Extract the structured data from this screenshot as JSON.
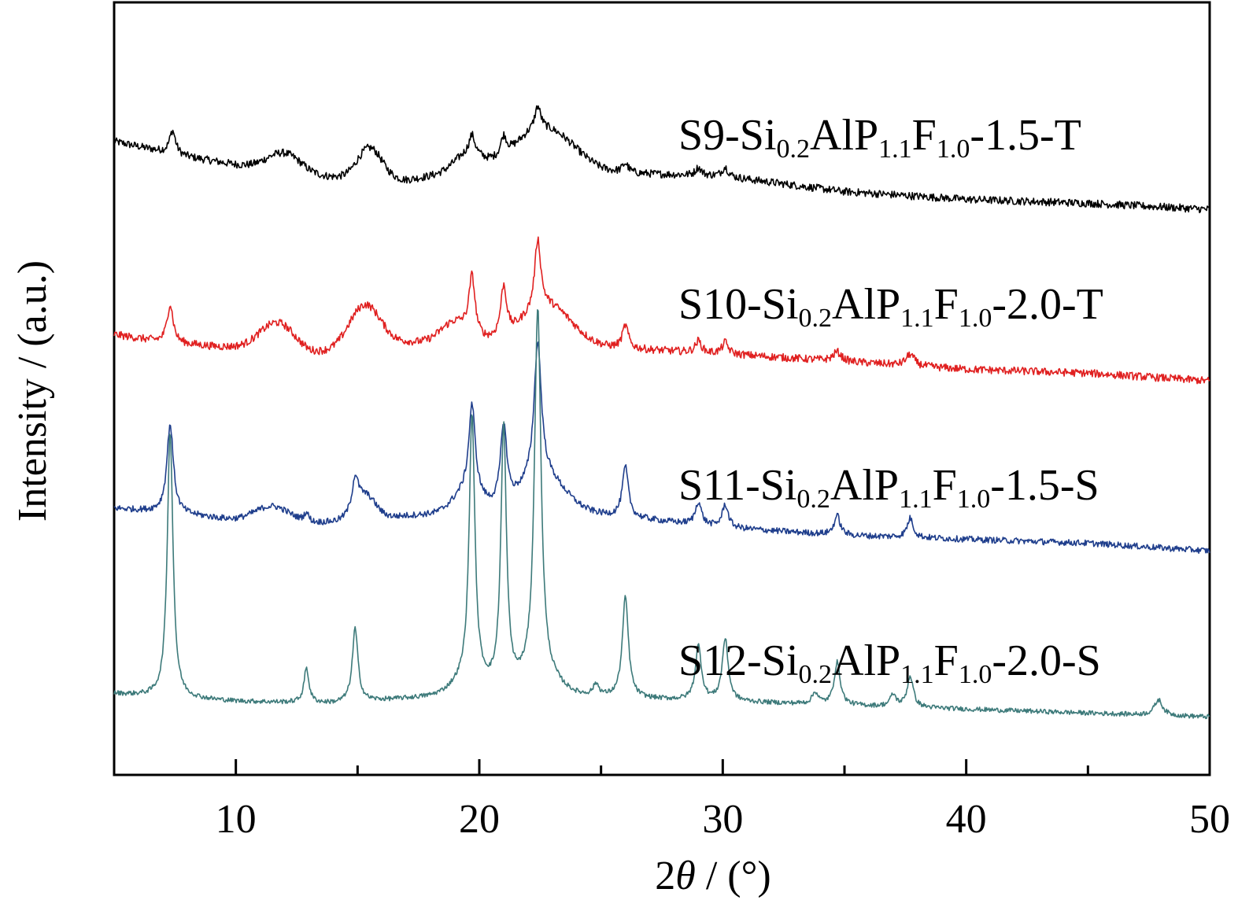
{
  "chart_data": {
    "type": "line",
    "title": "",
    "xlabel_pre": "2",
    "xlabel_theta": "θ",
    "xlabel_post": " / (°)",
    "ylabel": "Intensity / (a.u.)",
    "xlim": [
      5,
      50
    ],
    "xticks": [
      10,
      20,
      30,
      40,
      50
    ],
    "xtick_labels": [
      "10",
      "20",
      "30",
      "40",
      "50"
    ],
    "minor_xticks": [
      5,
      15,
      25,
      35,
      45
    ],
    "yticks": false,
    "grid": false,
    "legend": "inline labels",
    "series": [
      {
        "name": "S9-Si0.2AlP1.1F1.0-1.5-T",
        "label": {
          "p1": "S9-Si",
          "s1": "0.2",
          "p2": "AlP",
          "s2": "1.1",
          "p3": "F",
          "s3": "1.0",
          "p4": "-1.5-T"
        },
        "color": "#000000",
        "baseline": [
          [
            5,
            820
          ],
          [
            8,
            800
          ],
          [
            10,
            790
          ],
          [
            13,
            775
          ],
          [
            17,
            770
          ],
          [
            20,
            785
          ],
          [
            22,
            795
          ],
          [
            25,
            780
          ],
          [
            30,
            775
          ],
          [
            35,
            755
          ],
          [
            40,
            745
          ],
          [
            45,
            740
          ],
          [
            50,
            732
          ]
        ],
        "bumps": [
          [
            12,
            25,
            1.0
          ],
          [
            15.5,
            40,
            0.7
          ],
          [
            19.5,
            20,
            0.8
          ],
          [
            22.8,
            45,
            1.6
          ]
        ],
        "peaks": [
          [
            7.4,
            30,
            0.15
          ],
          [
            19.7,
            25,
            0.15
          ],
          [
            21.0,
            25,
            0.15
          ],
          [
            22.4,
            30,
            0.15
          ],
          [
            26.0,
            12,
            0.15
          ],
          [
            29.0,
            10,
            0.15
          ],
          [
            30.1,
            12,
            0.15
          ]
        ],
        "noise": 5
      },
      {
        "name": "S10-Si0.2AlP1.1F1.0-2.0-T",
        "label": {
          "p1": "S10-Si",
          "s1": "0.2",
          "p2": "AlP",
          "s2": "1.1",
          "p3": "F",
          "s3": "1.0",
          "p4": "-2.0-T"
        },
        "color": "#e02020",
        "baseline": [
          [
            5,
            570
          ],
          [
            7,
            560
          ],
          [
            9,
            555
          ],
          [
            12,
            550
          ],
          [
            13,
            545
          ],
          [
            17,
            560
          ],
          [
            20,
            560
          ],
          [
            24,
            555
          ],
          [
            30,
            545
          ],
          [
            35,
            535
          ],
          [
            40,
            525
          ],
          [
            45,
            520
          ],
          [
            50,
            510
          ]
        ],
        "bumps": [
          [
            11.7,
            35,
            1.0
          ],
          [
            15.3,
            55,
            0.9
          ],
          [
            19.0,
            25,
            0.8
          ],
          [
            22.8,
            50,
            1.4
          ]
        ],
        "peaks": [
          [
            7.3,
            50,
            0.15
          ],
          [
            19.7,
            75,
            0.15
          ],
          [
            21.0,
            65,
            0.15
          ],
          [
            22.4,
            90,
            0.15
          ],
          [
            26.0,
            30,
            0.15
          ],
          [
            29.0,
            15,
            0.15
          ],
          [
            30.1,
            15,
            0.15
          ],
          [
            34.7,
            12,
            0.2
          ],
          [
            37.7,
            15,
            0.2
          ]
        ],
        "noise": 5
      },
      {
        "name": "S11-Si0.2AlP1.1F1.0-1.5-S",
        "label": {
          "p1": "S11-Si",
          "s1": "0.2",
          "p2": "AlP",
          "s2": "1.1",
          "p3": "F",
          "s3": "1.0",
          "p4": "-1.5-S"
        },
        "color": "#1f3e8c",
        "baseline": [
          [
            5,
            345
          ],
          [
            7,
            340
          ],
          [
            10,
            330
          ],
          [
            13,
            325
          ],
          [
            17,
            335
          ],
          [
            20,
            340
          ],
          [
            24,
            340
          ],
          [
            30,
            320
          ],
          [
            35,
            310
          ],
          [
            40,
            305
          ],
          [
            45,
            300
          ],
          [
            50,
            290
          ]
        ],
        "bumps": [
          [
            11.5,
            20,
            1.0
          ],
          [
            15.3,
            30,
            0.6
          ],
          [
            19.5,
            25,
            0.8
          ],
          [
            22.6,
            45,
            1.2
          ]
        ],
        "peaks": [
          [
            7.3,
            115,
            0.16
          ],
          [
            12.9,
            12,
            0.12
          ],
          [
            14.9,
            40,
            0.15
          ],
          [
            19.7,
            115,
            0.16
          ],
          [
            21.0,
            105,
            0.16
          ],
          [
            22.4,
            175,
            0.18
          ],
          [
            26.0,
            65,
            0.15
          ],
          [
            29.0,
            30,
            0.15
          ],
          [
            30.1,
            30,
            0.15
          ],
          [
            34.7,
            25,
            0.15
          ],
          [
            37.7,
            25,
            0.15
          ]
        ],
        "noise": 4
      },
      {
        "name": "S12-Si0.2AlP1.1F1.0-2.0-S",
        "label": {
          "p1": "S12-Si",
          "s1": "0.2",
          "p2": "AlP",
          "s2": "1.1",
          "p3": "F",
          "s3": "1.0",
          "p4": "-2.0-S"
        },
        "color": "#3d7a7a",
        "baseline": [
          [
            5,
            105
          ],
          [
            7,
            100
          ],
          [
            10,
            95
          ],
          [
            14,
            92
          ],
          [
            18,
            100
          ],
          [
            20,
            105
          ],
          [
            24,
            100
          ],
          [
            30,
            95
          ],
          [
            35,
            90
          ],
          [
            40,
            85
          ],
          [
            45,
            80
          ],
          [
            50,
            75
          ]
        ],
        "bumps": [
          [
            19.5,
            15,
            0.8
          ],
          [
            22.5,
            20,
            1.0
          ]
        ],
        "peaks": [
          [
            7.3,
            345,
            0.14
          ],
          [
            12.9,
            45,
            0.12
          ],
          [
            14.9,
            95,
            0.14
          ],
          [
            19.7,
            345,
            0.14
          ],
          [
            21.0,
            340,
            0.14
          ],
          [
            22.4,
            480,
            0.16
          ],
          [
            24.8,
            15,
            0.15
          ],
          [
            26.0,
            130,
            0.15
          ],
          [
            29.0,
            70,
            0.15
          ],
          [
            30.1,
            80,
            0.15
          ],
          [
            33.8,
            15,
            0.15
          ],
          [
            34.7,
            55,
            0.15
          ],
          [
            37.0,
            15,
            0.15
          ],
          [
            37.7,
            40,
            0.15
          ],
          [
            47.9,
            20,
            0.2
          ]
        ],
        "noise": 3
      }
    ]
  }
}
